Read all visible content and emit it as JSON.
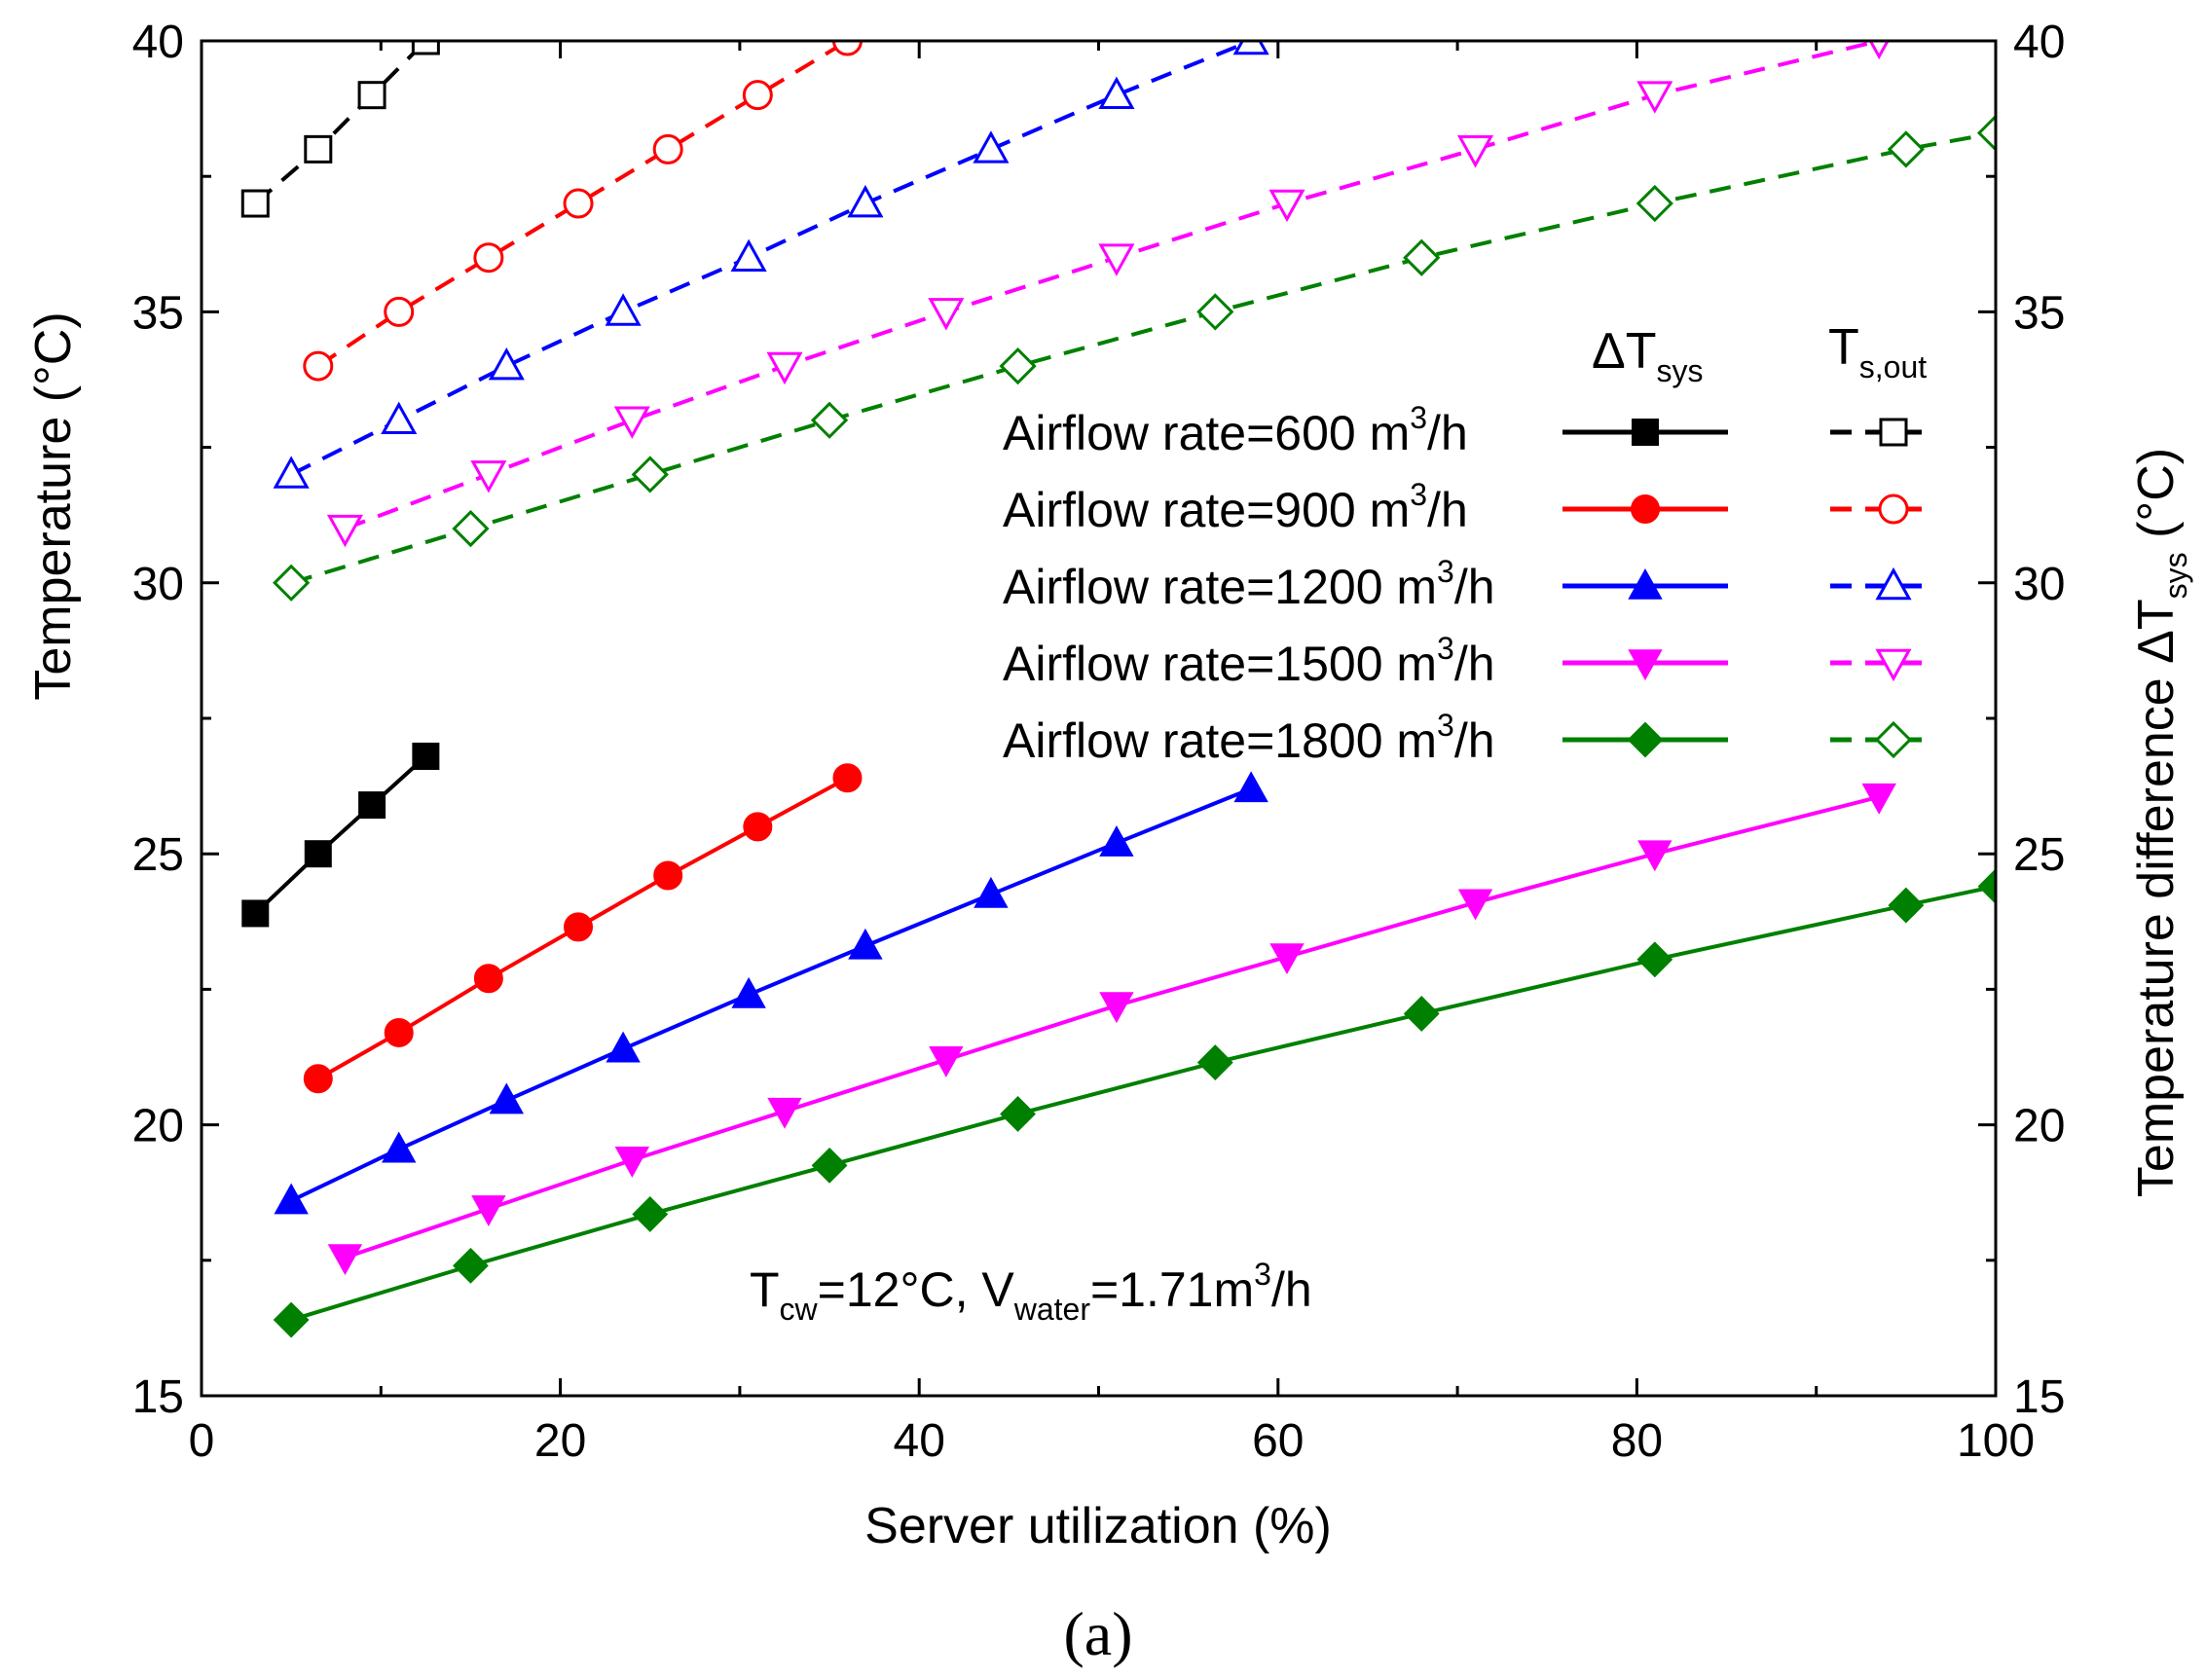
{
  "chart_data": {
    "type": "line",
    "title": "",
    "xlabel": "Server utilization (%)",
    "ylabel_left": "Temperature (°C)",
    "ylabel_right_main": "Temperature difference ΔT",
    "ylabel_right_sub": "sys",
    "ylabel_right_unit": " (°C)",
    "xlim": [
      0,
      100
    ],
    "ylim": [
      15,
      40
    ],
    "xticks": [
      0,
      20,
      40,
      60,
      80,
      100
    ],
    "yticks": [
      15,
      20,
      25,
      30,
      35,
      40
    ],
    "xtick_labels": [
      "0",
      "20",
      "40",
      "60",
      "80",
      "100"
    ],
    "ytick_labels": [
      "15",
      "20",
      "25",
      "30",
      "35",
      "40"
    ],
    "legend": {
      "header_dT_main": "ΔT",
      "header_dT_sub": "sys",
      "header_Tout_main": "T",
      "header_Tout_sub": "s,out",
      "placement": "top-right"
    },
    "annotation": {
      "t1": "T",
      "t1_sub": "cw",
      "t2": "=12°C, V",
      "t2_sub": "water",
      "t3": "=1.71m",
      "t3_sup": "3",
      "t4": "/h"
    },
    "panel_label": "(a)",
    "series": [
      {
        "name": "Airflow rate=600 m3/h",
        "label_main": "Airflow rate=600 m",
        "label_sup": "3",
        "label_end": "/h",
        "color": "#000000",
        "marker": "square",
        "x": [
          3,
          6.5,
          9.5,
          12.5
        ],
        "dT": [
          23.9,
          25.0,
          25.9,
          26.8
        ],
        "Tout": [
          37,
          38,
          39,
          40
        ]
      },
      {
        "name": "Airflow rate=900 m3/h",
        "label_main": "Airflow rate=900 m",
        "label_sup": "3",
        "label_end": "/h",
        "color": "#ff0000",
        "marker": "circle",
        "x": [
          6.5,
          11,
          16,
          21,
          26,
          31,
          36
        ],
        "dT": [
          20.85,
          21.7,
          22.7,
          23.65,
          24.6,
          25.5,
          26.4
        ],
        "Tout": [
          34,
          35,
          36,
          37,
          38,
          39,
          40
        ]
      },
      {
        "name": "Airflow rate=1200 m3/h",
        "label_main": "Airflow rate=1200 m",
        "label_sup": "3",
        "label_end": "/h",
        "color": "#0000ff",
        "marker": "triangle-up",
        "x": [
          5,
          11,
          17,
          23.5,
          30.5,
          37,
          44,
          51,
          58.5
        ],
        "dT": [
          18.6,
          19.55,
          20.45,
          21.4,
          22.4,
          23.3,
          24.25,
          25.2,
          26.2
        ],
        "Tout": [
          32,
          33,
          34,
          35,
          36,
          37,
          38,
          39,
          40
        ]
      },
      {
        "name": "Airflow rate=1500 m3/h",
        "label_main": "Airflow rate=1500 m",
        "label_sup": "3",
        "label_end": "/h",
        "color": "#ff00ff",
        "marker": "triangle-down",
        "x": [
          8,
          16,
          24,
          32.5,
          41.5,
          51,
          60.5,
          71,
          81,
          93.5
        ],
        "dT": [
          17.55,
          18.45,
          19.35,
          20.25,
          21.2,
          22.2,
          23.1,
          24.1,
          25.0,
          26.05
        ],
        "Tout": [
          31,
          32,
          33,
          34,
          35,
          36,
          37,
          38,
          39,
          40
        ]
      },
      {
        "name": "Airflow rate=1800 m3/h",
        "label_main": "Airflow rate=1800 m",
        "label_sup": "3",
        "label_end": "/h",
        "color": "#008000",
        "marker": "diamond",
        "x": [
          5,
          15,
          25,
          35,
          45.5,
          56.5,
          68,
          81,
          95,
          100
        ],
        "dT": [
          16.4,
          17.4,
          18.35,
          19.25,
          20.2,
          21.15,
          22.05,
          23.05,
          24.05,
          24.4
        ],
        "Tout": [
          30,
          31,
          32,
          33,
          34,
          35,
          36,
          37,
          38,
          38.3
        ]
      }
    ]
  }
}
